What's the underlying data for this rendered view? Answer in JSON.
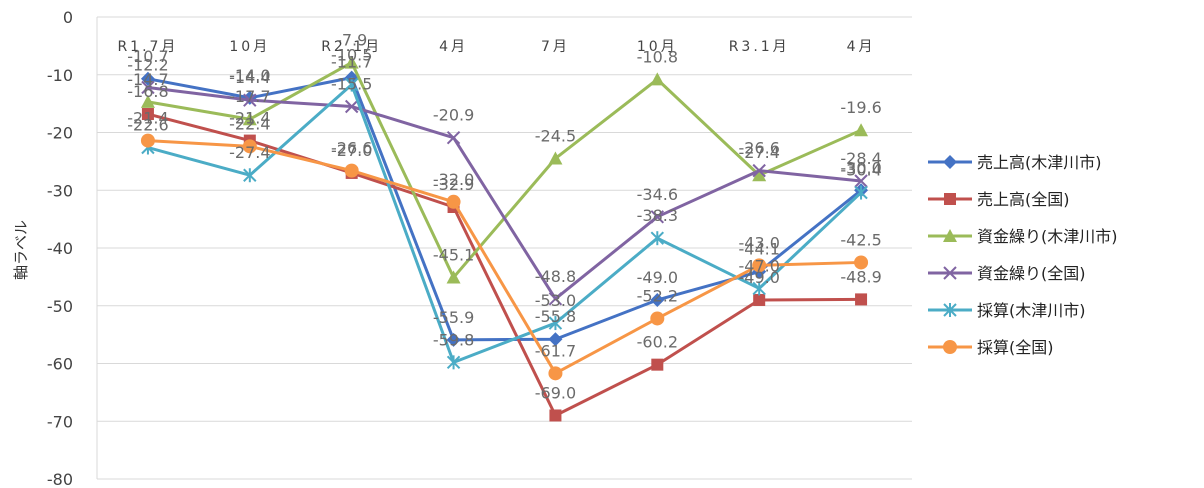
{
  "chart_data": {
    "type": "line",
    "ylabel": "軸ラベル",
    "ylim": [
      -80,
      0
    ],
    "ytick_step": 10,
    "grid": true,
    "legend_position": "right",
    "categories": [
      "R1.7月",
      "10月",
      "R2.1月",
      "4月",
      "7月",
      "10月",
      "R3.1月",
      "4月"
    ],
    "series": [
      {
        "name": "売上高(木津川市)",
        "color": "#4472C4",
        "marker": "diamond",
        "values": [
          -10.7,
          -14.0,
          -10.5,
          -55.9,
          -55.8,
          -49.0,
          -44.1,
          -30.0
        ]
      },
      {
        "name": "売上高(全国)",
        "color": "#C0504D",
        "marker": "square",
        "values": [
          -16.8,
          -21.4,
          -27.0,
          -32.9,
          -69.0,
          -60.2,
          -49.0,
          -48.9
        ]
      },
      {
        "name": "資金繰り(木津川市)",
        "color": "#9BBB59",
        "marker": "triangle",
        "values": [
          -14.7,
          -17.7,
          -7.9,
          -45.1,
          -24.5,
          -10.8,
          -27.4,
          -19.6
        ]
      },
      {
        "name": "資金繰り(全国)",
        "color": "#8064A2",
        "marker": "x",
        "values": [
          -12.2,
          -14.4,
          -15.5,
          -20.9,
          -48.8,
          -34.6,
          -26.6,
          -28.4
        ]
      },
      {
        "name": "採算(木津川市)",
        "color": "#4BACC6",
        "marker": "star",
        "values": [
          -22.6,
          -27.4,
          -11.7,
          -59.8,
          -53.0,
          -38.3,
          -47.0,
          -30.4
        ]
      },
      {
        "name": "採算(全国)",
        "color": "#F79646",
        "marker": "circle",
        "values": [
          -21.4,
          -22.4,
          -26.6,
          -32.0,
          -61.7,
          -52.2,
          -43.0,
          -42.5
        ]
      }
    ]
  }
}
